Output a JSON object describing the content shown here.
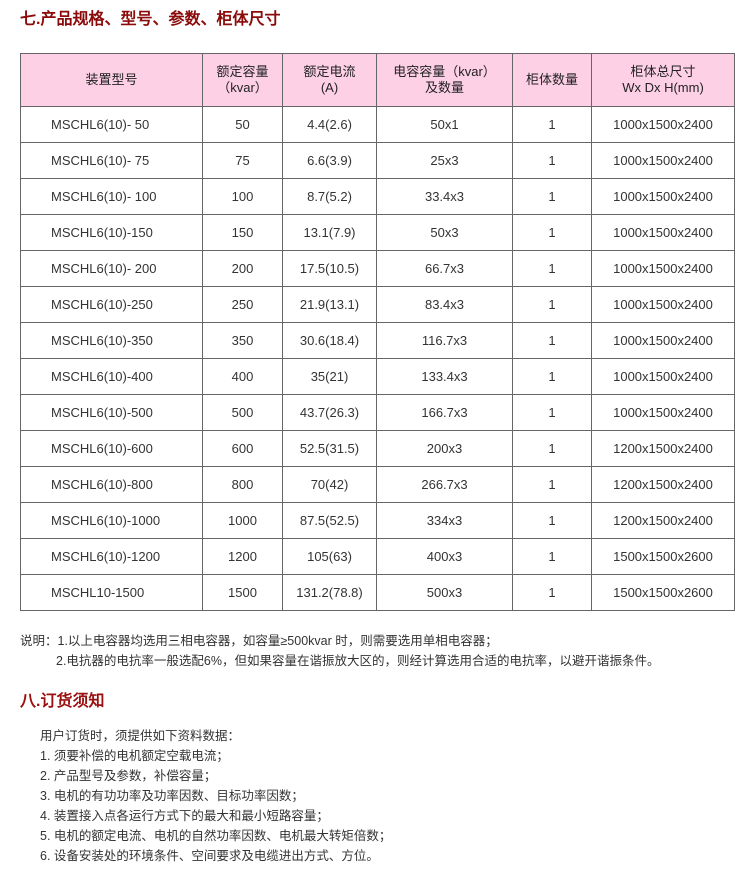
{
  "section7": {
    "title": "七.产品规格、型号、参数、柜体尺寸"
  },
  "table": {
    "headers": [
      [
        "装置型号",
        ""
      ],
      [
        "额定容量",
        "（kvar）"
      ],
      [
        "额定电流",
        "(A)"
      ],
      [
        "电容容量（kvar）",
        "及数量"
      ],
      [
        "柜体数量",
        ""
      ],
      [
        "柜体总尺寸",
        "Wx Dx H(mm)"
      ]
    ],
    "rows": [
      [
        "MSCHL6(10)- 50",
        "50",
        "4.4(2.6)",
        "50x1",
        "1",
        "1000x1500x2400"
      ],
      [
        "MSCHL6(10)- 75",
        "75",
        "6.6(3.9)",
        "25x3",
        "1",
        "1000x1500x2400"
      ],
      [
        "MSCHL6(10)- 100",
        "100",
        "8.7(5.2)",
        "33.4x3",
        "1",
        "1000x1500x2400"
      ],
      [
        "MSCHL6(10)-150",
        "150",
        "13.1(7.9)",
        "50x3",
        "1",
        "1000x1500x2400"
      ],
      [
        "MSCHL6(10)- 200",
        "200",
        "17.5(10.5)",
        "66.7x3",
        "1",
        "1000x1500x2400"
      ],
      [
        "MSCHL6(10)-250",
        "250",
        "21.9(13.1)",
        "83.4x3",
        "1",
        "1000x1500x2400"
      ],
      [
        "MSCHL6(10)-350",
        "350",
        "30.6(18.4)",
        "116.7x3",
        "1",
        "1000x1500x2400"
      ],
      [
        "MSCHL6(10)-400",
        "400",
        "35(21)",
        "133.4x3",
        "1",
        "1000x1500x2400"
      ],
      [
        "MSCHL6(10)-500",
        "500",
        "43.7(26.3)",
        "166.7x3",
        "1",
        "1000x1500x2400"
      ],
      [
        "MSCHL6(10)-600",
        "600",
        "52.5(31.5)",
        "200x3",
        "1",
        "1200x1500x2400"
      ],
      [
        "MSCHL6(10)-800",
        "800",
        "70(42)",
        "266.7x3",
        "1",
        "1200x1500x2400"
      ],
      [
        "MSCHL6(10)-1000",
        "1000",
        "87.5(52.5)",
        "334x3",
        "1",
        "1200x1500x2400"
      ],
      [
        "MSCHL6(10)-1200",
        "1200",
        "105(63)",
        "400x3",
        "1",
        "1500x1500x2600"
      ],
      [
        "MSCHL10-1500",
        "1500",
        "131.2(78.8)",
        "500x3",
        "1",
        "1500x1500x2600"
      ]
    ]
  },
  "notes": {
    "line1": "说明：1.以上电容器均选用三相电容器，如容量≥500kvar 时，则需要选用单相电容器；",
    "line2": "2.电抗器的电抗率一般选配6%，但如果容量在谐振放大区的，则经计算选用合适的电抗率，以避开谐振条件。"
  },
  "section8": {
    "title": "八.订货须知",
    "intro": "用户订货时，须提供如下资料数据：",
    "items": [
      "1.  须要补偿的电机额定空载电流；",
      "2.  产品型号及参数，补偿容量；",
      "3.  电机的有功功率及功率因数、目标功率因数；",
      "4.  装置接入点各运行方式下的最大和最小短路容量；",
      "5.  电机的额定电流、电机的自然功率因数、电机最大转矩倍数；",
      "6.  设备安装处的环境条件、空间要求及电缆进出方式、方位。"
    ]
  }
}
